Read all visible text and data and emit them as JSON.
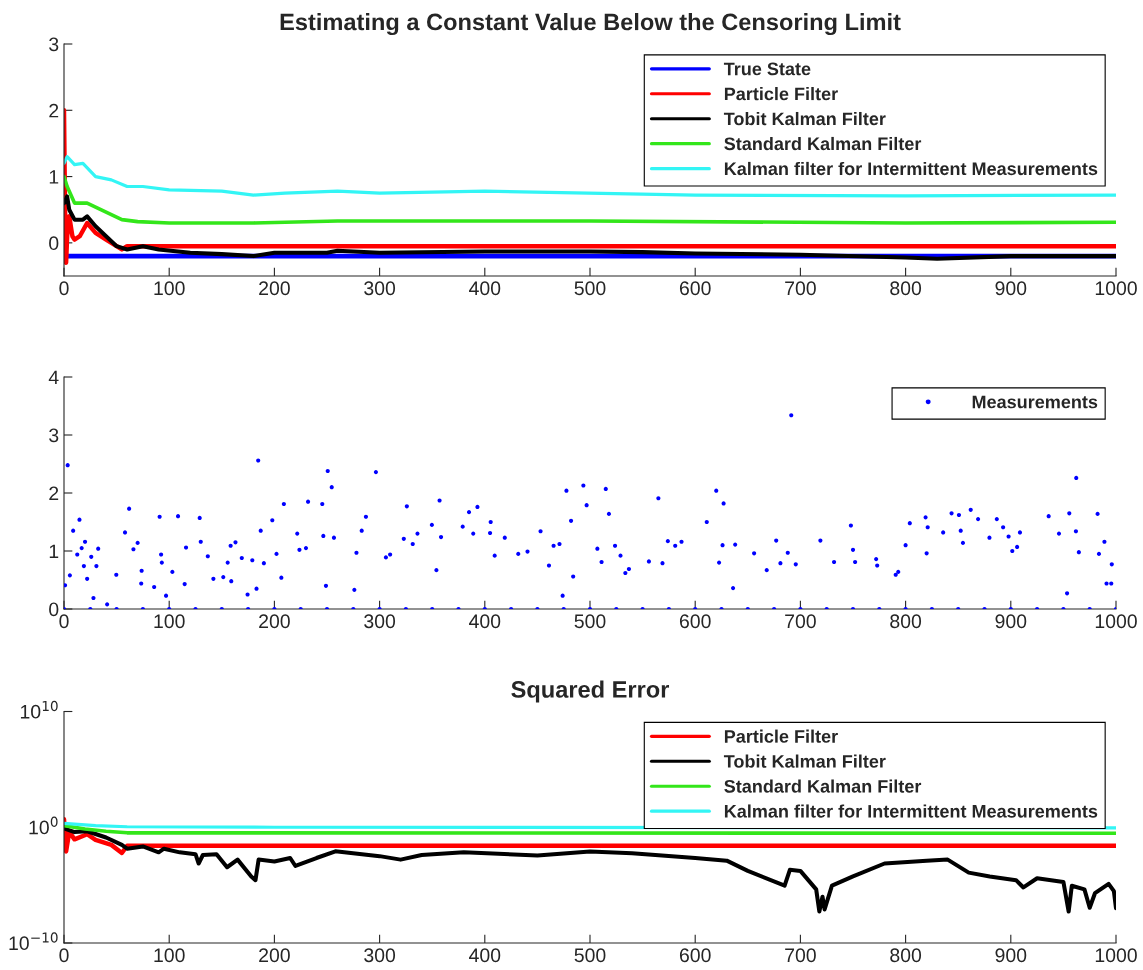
{
  "chart_data": [
    {
      "type": "line",
      "title": "Estimating a Constant Value Below the Censoring Limit",
      "xlim": [
        0,
        1000
      ],
      "xticks": [
        0,
        100,
        200,
        300,
        400,
        500,
        600,
        700,
        800,
        900,
        1000
      ],
      "ylim": [
        -0.5,
        3
      ],
      "yticks": [
        0,
        1,
        2,
        3
      ],
      "grid": false,
      "legend": "top right",
      "series": [
        {
          "name": "True State",
          "color": "#0000ff",
          "x": [
            0,
            1000
          ],
          "values": [
            -0.2,
            -0.2
          ]
        },
        {
          "name": "Particle Filter",
          "color": "#ff0000",
          "x": [
            0,
            1,
            2,
            3,
            5,
            8,
            10,
            15,
            22,
            30,
            40,
            50,
            55,
            60,
            1000
          ],
          "values": [
            2,
            0.5,
            -0.3,
            0.1,
            0.4,
            0.1,
            0.05,
            0.1,
            0.3,
            0.15,
            0.05,
            -0.05,
            -0.1,
            -0.05,
            -0.05
          ]
        },
        {
          "name": "Tobit Kalman Filter",
          "color": "#000000",
          "x": [
            0,
            3,
            5,
            10,
            18,
            22,
            30,
            40,
            50,
            60,
            75,
            90,
            120,
            150,
            180,
            200,
            250,
            260,
            300,
            400,
            500,
            550,
            600,
            700,
            800,
            830,
            900,
            1000
          ],
          "values": [
            0.6,
            0.7,
            0.5,
            0.35,
            0.35,
            0.4,
            0.25,
            0.1,
            -0.05,
            -0.1,
            -0.05,
            -0.1,
            -0.15,
            -0.17,
            -0.2,
            -0.15,
            -0.15,
            -0.12,
            -0.15,
            -0.13,
            -0.13,
            -0.14,
            -0.16,
            -0.18,
            -0.22,
            -0.24,
            -0.2,
            -0.2
          ]
        },
        {
          "name": "Standard Kalman Filter",
          "color": "#33e61a",
          "x": [
            0,
            3,
            10,
            22,
            35,
            55,
            70,
            100,
            180,
            260,
            500,
            800,
            1000
          ],
          "values": [
            1.0,
            0.85,
            0.6,
            0.6,
            0.5,
            0.35,
            0.32,
            0.3,
            0.3,
            0.33,
            0.33,
            0.3,
            0.31
          ]
        },
        {
          "name": "Kalman filter for Intermittent Measurements",
          "color": "#33f5f5",
          "x": [
            0,
            3,
            10,
            18,
            30,
            45,
            60,
            75,
            100,
            150,
            180,
            210,
            260,
            300,
            400,
            600,
            800,
            1000
          ],
          "values": [
            1.2,
            1.3,
            1.18,
            1.2,
            1.0,
            0.95,
            0.85,
            0.85,
            0.8,
            0.78,
            0.72,
            0.75,
            0.78,
            0.75,
            0.78,
            0.72,
            0.71,
            0.72
          ]
        }
      ]
    },
    {
      "type": "scatter",
      "xlim": [
        0,
        1000
      ],
      "xticks": [
        0,
        100,
        200,
        300,
        400,
        500,
        600,
        700,
        800,
        900,
        1000
      ],
      "ylim": [
        0,
        4
      ],
      "yticks": [
        0,
        1,
        2,
        3,
        4
      ],
      "grid": false,
      "legend": "top right",
      "marker": "circle",
      "series": [
        {
          "name": "Measurements",
          "color": "#0000ff",
          "x": [
            0,
            25,
            50,
            75,
            100,
            125,
            150,
            175,
            200,
            225,
            250,
            275,
            300,
            325,
            350,
            375,
            400,
            425,
            450,
            475,
            500,
            525,
            550,
            575,
            600,
            625,
            650,
            675,
            700,
            725,
            750,
            775,
            800,
            825,
            850,
            875,
            900,
            925,
            950,
            975,
            1000,
            3.5,
            1,
            5.6,
            8.7,
            14.7,
            12.6,
            16.8,
            20,
            18.9,
            22,
            25.9,
            32.5,
            30.8,
            28,
            41,
            49.7,
            58,
            61.9,
            66,
            70,
            73.8,
            73.4,
            85.7,
            90.9,
            92.3,
            93,
            97,
            103,
            108.4,
            116,
            114.7,
            129,
            130,
            136.7,
            142,
            151.4,
            155.6,
            158.4,
            163,
            169,
            159,
            174.5,
            179,
            184.6,
            187,
            183,
            190,
            198,
            202,
            209,
            206.6,
            221.7,
            223.8,
            230,
            232,
            245.5,
            246.5,
            250.7,
            254.5,
            256.6,
            249,
            276,
            278,
            287,
            296.5,
            283,
            306,
            310,
            323,
            325.9,
            331.5,
            336,
            349.7,
            357,
            358.4,
            354,
            379,
            385,
            389,
            393,
            405.6,
            405,
            409.4,
            419,
            431.8,
            440.6,
            453,
            461,
            465.4,
            471,
            477.6,
            482,
            493.7,
            496.8,
            474,
            484,
            515,
            518,
            507,
            511,
            523.8,
            529,
            533.6,
            537,
            556,
            565,
            574,
            581,
            587,
            568.9,
            611,
            620,
            627,
            626,
            622.7,
            638,
            636,
            656,
            668,
            677,
            691.3,
            688,
            681,
            695.6,
            719,
            732,
            748,
            750,
            752,
            772,
            773,
            790.6,
            793,
            800,
            804,
            819,
            821,
            820,
            835.7,
            843.7,
            850.7,
            852.4,
            854.5,
            861.9,
            868.9,
            879.7,
            886.7,
            892.7,
            897.9,
            908.7,
            906,
            901.4,
            936,
            945.8,
            955.6,
            962.2,
            961.9,
            964.7,
            982.5,
            989,
            983.8,
            996,
            995.5,
            991,
            953.5
          ],
          "values": [
            0,
            0,
            0,
            0,
            0,
            0,
            0,
            0,
            0,
            0,
            0,
            0,
            0,
            0,
            0,
            0,
            0,
            0,
            0,
            0,
            0,
            0,
            0,
            0,
            0,
            0,
            0,
            0,
            0,
            0,
            0,
            0,
            0,
            0,
            0,
            0,
            0,
            0,
            0,
            0,
            0,
            2.48,
            0.41,
            0.58,
            1.35,
            1.54,
            0.94,
            1.05,
            1.16,
            0.74,
            0.52,
            0.9,
            1.04,
            0.74,
            0.19,
            0.08,
            0.59,
            1.32,
            1.73,
            1.03,
            1.14,
            0.66,
            0.44,
            0.38,
            1.59,
            0.94,
            0.8,
            0.23,
            0.64,
            1.6,
            1.06,
            0.43,
            1.57,
            1.16,
            0.91,
            0.52,
            0.55,
            0.8,
            1.09,
            1.15,
            0.88,
            0.48,
            0.25,
            0.84,
            2.56,
            1.35,
            0.35,
            0.79,
            1.53,
            0.95,
            1.81,
            0.54,
            1.3,
            1.02,
            1.05,
            1.85,
            1.81,
            1.26,
            2.38,
            2.1,
            1.23,
            0.4,
            0.33,
            0.97,
            1.59,
            2.36,
            1.35,
            0.89,
            0.94,
            1.21,
            1.77,
            1.12,
            1.3,
            1.45,
            1.87,
            1.24,
            0.67,
            1.42,
            1.67,
            1.3,
            1.76,
            1.5,
            1.31,
            0.92,
            1.23,
            0.95,
            0.99,
            1.34,
            0.75,
            1.09,
            1.12,
            2.04,
            1.52,
            2.13,
            1.79,
            0.23,
            0.56,
            2.07,
            1.64,
            1.04,
            0.81,
            1.09,
            0.92,
            0.62,
            0.69,
            0.82,
            1.91,
            1.17,
            1.09,
            1.16,
            0.79,
            1.5,
            2.04,
            1.82,
            1.1,
            0.8,
            1.11,
            0.36,
            0.96,
            0.67,
            1.18,
            3.34,
            0.97,
            0.79,
            0.77,
            1.18,
            0.81,
            1.44,
            1.02,
            0.81,
            0.86,
            0.75,
            0.59,
            0.64,
            1.1,
            1.48,
            1.58,
            1.41,
            0.96,
            1.32,
            1.65,
            1.62,
            1.35,
            1.14,
            1.71,
            1.55,
            1.23,
            1.55,
            1.41,
            1.25,
            1.32,
            1.07,
            1.0,
            1.6,
            1.3,
            1.65,
            2.26,
            1.34,
            0.98,
            1.64,
            1.16,
            0.95,
            0.77,
            0.44,
            0.44,
            0.27
          ]
        }
      ]
    },
    {
      "type": "line",
      "title": "Squared Error",
      "log": true,
      "xlim": [
        0,
        1000
      ],
      "xticks": [
        0,
        100,
        200,
        300,
        400,
        500,
        600,
        700,
        800,
        900,
        1000
      ],
      "ylim": [
        1e-10,
        10000000000.0
      ],
      "yticks": [
        {
          "value": 1e-10,
          "label": "10$^{−10}$"
        },
        {
          "value": 1,
          "label": "10$^{0}$"
        },
        {
          "value": 10000000000.0,
          "label": "10$^{10}$"
        }
      ],
      "grid": false,
      "legend": "top right",
      "series": [
        {
          "name": "Particle Filter",
          "color": "#ff0000",
          "x": [
            0,
            2,
            5,
            10,
            22,
            30,
            45,
            55,
            60,
            1000
          ],
          "values": [
            5,
            0.008,
            0.4,
            0.09,
            0.25,
            0.08,
            0.03,
            0.006,
            0.025,
            0.025
          ]
        },
        {
          "name": "Tobit Kalman Filter",
          "color": "#000000",
          "x": [
            0,
            10,
            22,
            40,
            55,
            60,
            75,
            90,
            95,
            110,
            125,
            128,
            132,
            145,
            155,
            165,
            178,
            182,
            185,
            200,
            215,
            220,
            240,
            258,
            300,
            320,
            340,
            380,
            450,
            500,
            540,
            600,
            630,
            650,
            685,
            690,
            700,
            715,
            718,
            721,
            723,
            730,
            750,
            780,
            820,
            840,
            860,
            880,
            905,
            912,
            925,
            950,
            955,
            958,
            970,
            975,
            980,
            993,
            998,
            1000
          ],
          "values": [
            0.8,
            0.38,
            0.45,
            0.13,
            0.03,
            0.014,
            0.022,
            0.0068,
            0.014,
            0.0068,
            0.0047,
            0.00074,
            0.004,
            0.0047,
            0.00035,
            0.0016,
            5.6e-05,
            2.7e-05,
            0.0016,
            0.0011,
            0.0022,
            0.00045,
            0.0022,
            0.0083,
            0.0032,
            0.0016,
            0.004,
            0.0068,
            0.0037,
            0.0079,
            0.0058,
            0.0022,
            0.0013,
            0.00017,
            8.9e-06,
            0.00021,
            0.00017,
            4.3e-06,
            5.2e-08,
            1e-06,
            7.9e-08,
            8.9e-06,
            5.6e-05,
            0.00074,
            0.0013,
            0.0016,
            0.00012,
            5.6e-05,
            2.7e-05,
            6.3e-06,
            3.9e-05,
            1.9e-05,
            5.2e-08,
            8.9e-06,
            4.3e-06,
            1.1e-07,
            2e-06,
            1.3e-05,
            3e-06,
            1e-07
          ]
        },
        {
          "name": "Standard Kalman Filter",
          "color": "#33e61a",
          "x": [
            0,
            20,
            40,
            60,
            1000
          ],
          "values": [
            1.4,
            0.7,
            0.45,
            0.33,
            0.3
          ]
        },
        {
          "name": "Kalman filter for Intermittent Measurements",
          "color": "#33f5f5",
          "x": [
            0,
            30,
            60,
            200,
            1000
          ],
          "values": [
            2.2,
            1.4,
            1.1,
            1.0,
            0.9
          ]
        }
      ]
    }
  ]
}
